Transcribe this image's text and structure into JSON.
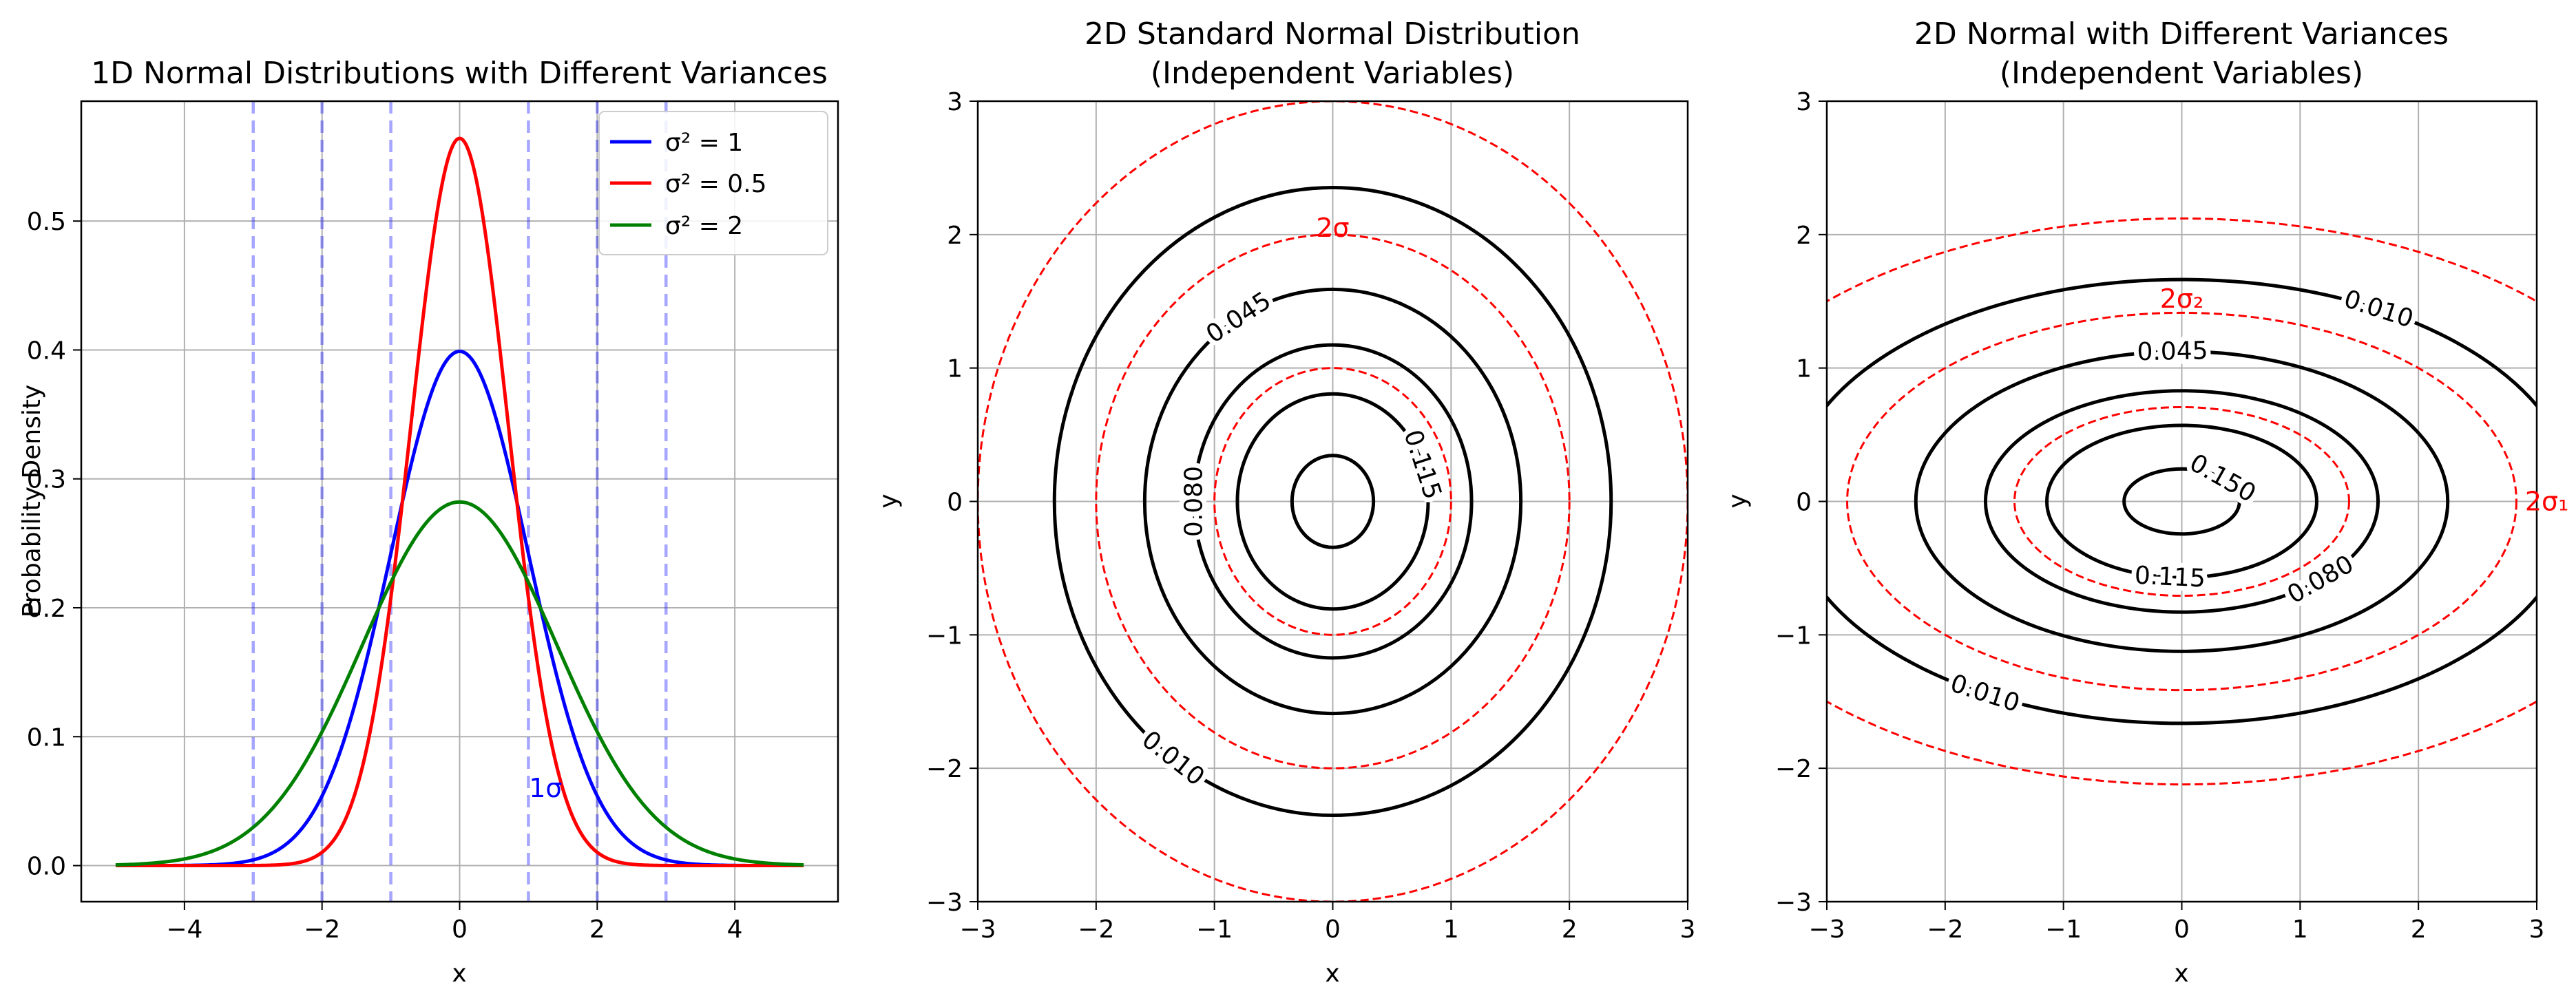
{
  "chart_data": [
    {
      "type": "line",
      "title": "1D Normal Distributions with Different Variances",
      "xlabel": "x",
      "ylabel": "Probability Density",
      "xlim": [
        -5.5,
        5.5
      ],
      "ylim": [
        -0.028,
        0.593
      ],
      "xticks": [
        -4,
        -2,
        0,
        2,
        4
      ],
      "yticks": [
        0.0,
        0.1,
        0.2,
        0.3,
        0.4,
        0.5
      ],
      "grid": true,
      "legend_position": "top-right",
      "x_range": [
        -5,
        5
      ],
      "series": [
        {
          "name": "σ² = 1",
          "variance": 1,
          "color": "#0000ff"
        },
        {
          "name": "σ² = 0.5",
          "variance": 0.5,
          "color": "#ff0000"
        },
        {
          "name": "σ² = 2",
          "variance": 2,
          "color": "#008000"
        }
      ],
      "sigma_lines": [
        {
          "x": -3,
          "color": "#0000ff",
          "style": "dashed"
        },
        {
          "x": -2,
          "color": "#0000ff",
          "style": "dashed"
        },
        {
          "x": -1,
          "color": "#0000ff",
          "style": "dashed"
        },
        {
          "x": 1,
          "color": "#0000ff",
          "style": "dashed"
        },
        {
          "x": 2,
          "color": "#0000ff",
          "style": "dashed"
        },
        {
          "x": 3,
          "color": "#0000ff",
          "style": "dashed"
        }
      ],
      "annotations": [
        {
          "text": "1σ",
          "x": 1.25,
          "y": 0.06,
          "color": "#0000ff"
        }
      ]
    },
    {
      "type": "contour",
      "title": "2D Standard Normal Distribution",
      "subtitle": "(Independent Variables)",
      "xlabel": "x",
      "ylabel": "y",
      "xlim": [
        -3,
        3
      ],
      "ylim": [
        -3,
        3
      ],
      "xticks": [
        -3,
        -2,
        -1,
        0,
        1,
        2,
        3
      ],
      "yticks": [
        -3,
        -2,
        -1,
        0,
        1,
        2,
        3
      ],
      "grid": true,
      "sigma_x": 1,
      "sigma_y": 1,
      "contour_levels": [
        0.01,
        0.045,
        0.08,
        0.115,
        0.15
      ],
      "contour_labels": [
        {
          "text": "0.045",
          "level": 0.045,
          "angle_deg": 120
        },
        {
          "text": "0.080",
          "level": 0.08,
          "angle_deg": 180
        },
        {
          "text": "0.115",
          "level": 0.115,
          "angle_deg": 20
        },
        {
          "text": "0.010",
          "level": 0.01,
          "angle_deg": 235
        }
      ],
      "sigma_ellipses": [
        {
          "k": 1,
          "color": "#ff0000",
          "style": "dashed"
        },
        {
          "k": 2,
          "color": "#ff0000",
          "style": "dashed"
        },
        {
          "k": 3,
          "color": "#ff0000",
          "style": "dashed"
        }
      ],
      "annotations": [
        {
          "text": "2σ",
          "x": 0,
          "y": 2.05,
          "color": "#ff0000"
        }
      ]
    },
    {
      "type": "contour",
      "title": "2D Normal with Different Variances",
      "subtitle": "(Independent Variables)",
      "xlabel": "x",
      "ylabel": "y",
      "xlim": [
        -3,
        3
      ],
      "ylim": [
        -3,
        3
      ],
      "xticks": [
        -3,
        -2,
        -1,
        0,
        1,
        2,
        3
      ],
      "yticks": [
        -3,
        -2,
        -1,
        0,
        1,
        2,
        3
      ],
      "grid": true,
      "sigma_x": 1.414,
      "sigma_y": 0.707,
      "contour_levels": [
        0.01,
        0.045,
        0.08,
        0.115,
        0.15
      ],
      "contour_labels": [
        {
          "text": "0.010",
          "level": 0.01,
          "angle_deg": 60
        },
        {
          "text": "0.045",
          "level": 0.045,
          "angle_deg": 92
        },
        {
          "text": "0.150",
          "level": 0.15,
          "angle_deg": 45
        },
        {
          "text": "0.115",
          "level": 0.115,
          "angle_deg": 265
        },
        {
          "text": "0.080",
          "level": 0.08,
          "angle_deg": 315
        },
        {
          "text": "0.010",
          "level": 0.01,
          "angle_deg": 240
        }
      ],
      "sigma_ellipses": [
        {
          "k": 1,
          "color": "#ff0000",
          "style": "dashed"
        },
        {
          "k": 2,
          "color": "#ff0000",
          "style": "dashed"
        },
        {
          "k": 3,
          "color": "#ff0000",
          "style": "dashed"
        }
      ],
      "annotations": [
        {
          "text": "2σ₂",
          "x": 0,
          "y": 1.52,
          "color": "#ff0000"
        },
        {
          "text": "2σ₁",
          "x": 3.05,
          "y": 0,
          "color": "#ff0000"
        }
      ]
    }
  ]
}
